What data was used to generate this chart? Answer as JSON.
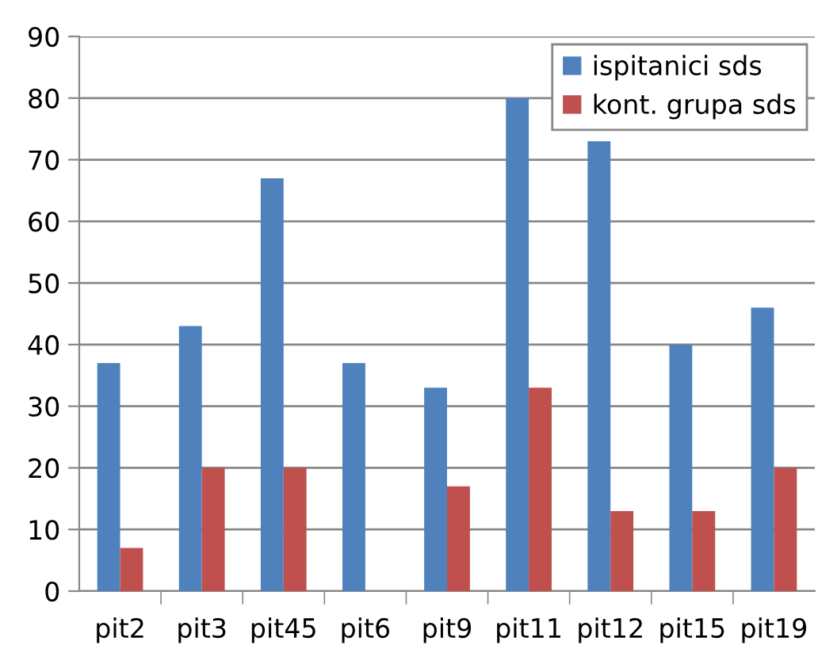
{
  "chart_data": {
    "type": "bar",
    "categories": [
      "pit2",
      "pit3",
      "pit45",
      "pit6",
      "pit9",
      "pit11",
      "pit12",
      "pit15",
      "pit19"
    ],
    "series": [
      {
        "name": "ispitanici sds",
        "color": "#4f81bd",
        "values": [
          37,
          43,
          67,
          37,
          33,
          80,
          73,
          40,
          46
        ]
      },
      {
        "name": "kont. grupa sds",
        "color": "#c0504d",
        "values": [
          7,
          20,
          20,
          0,
          17,
          33,
          13,
          13,
          20
        ]
      }
    ],
    "ylim": [
      0,
      90
    ],
    "yticks": [
      0,
      10,
      20,
      30,
      40,
      50,
      60,
      70,
      80,
      90
    ],
    "grid": "y",
    "legend": "top right"
  }
}
